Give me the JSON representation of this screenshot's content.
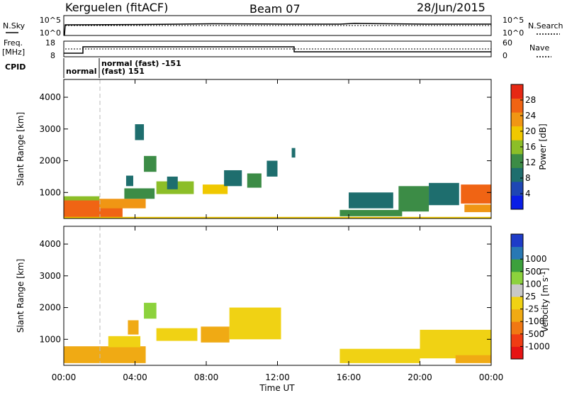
{
  "header": {
    "station": "Kerguelen (fitACF)",
    "beam": "Beam 07",
    "date": "28/Jun/2015"
  },
  "noise_panel": {
    "left_label": "N.Sky",
    "right_label": "N.Search",
    "left_ticks": [
      "10^5",
      "10^0"
    ],
    "right_ticks": [
      "10^5",
      "10^0"
    ]
  },
  "freq_panel": {
    "left_label_1": "Freq.",
    "left_label_2": "[MHz]",
    "right_label": "Nave",
    "left_ticks": [
      "18",
      "8"
    ],
    "right_ticks": [
      "60",
      "0"
    ]
  },
  "cpid_panel": {
    "label": "CPID",
    "mode_1": "normal",
    "mode_2a": "normal (fast) -151",
    "mode_2b": "(fast) 151"
  },
  "chart_data": [
    {
      "type": "heatmap",
      "name": "Power",
      "xlabel": "Time UT",
      "ylabel": "Slant Range [km]",
      "xlim": [
        0,
        24
      ],
      "x_tick_labels": [
        "00:00",
        "04:00",
        "08:00",
        "12:00",
        "16:00",
        "20:00",
        "00:00"
      ],
      "ylim": [
        180,
        4560
      ],
      "y_ticks": [
        1000,
        2000,
        3000,
        4000
      ],
      "colorbar": {
        "label": "Power [dB]",
        "ticks": [
          4,
          8,
          12,
          16,
          20,
          24,
          28
        ],
        "range": [
          0,
          32
        ],
        "colors": [
          "#0a1ee6",
          "#1e46b4",
          "#1e6e6e",
          "#3c8c46",
          "#8cbe28",
          "#f0c800",
          "#f09614",
          "#f06414",
          "#e62814"
        ]
      },
      "regions": [
        {
          "t0": 0.0,
          "t1": 3.3,
          "r0": 200,
          "r1": 780,
          "v": 27
        },
        {
          "t0": 0.0,
          "t1": 2.0,
          "r0": 750,
          "r1": 880,
          "v": 16
        },
        {
          "t0": 2.0,
          "t1": 4.6,
          "r0": 500,
          "r1": 800,
          "v": 23
        },
        {
          "t0": 3.4,
          "t1": 5.1,
          "r0": 800,
          "r1": 1130,
          "v": 12
        },
        {
          "t0": 3.5,
          "t1": 3.9,
          "r0": 1200,
          "r1": 1530,
          "v": 8
        },
        {
          "t0": 4.0,
          "t1": 4.5,
          "r0": 2650,
          "r1": 3150,
          "v": 8
        },
        {
          "t0": 4.5,
          "t1": 5.2,
          "r0": 1650,
          "r1": 2150,
          "v": 12
        },
        {
          "t0": 5.2,
          "t1": 7.3,
          "r0": 950,
          "r1": 1350,
          "v": 16
        },
        {
          "t0": 5.8,
          "t1": 6.4,
          "r0": 1100,
          "r1": 1500,
          "v": 8
        },
        {
          "t0": 7.8,
          "t1": 9.2,
          "r0": 950,
          "r1": 1250,
          "v": 20
        },
        {
          "t0": 9.0,
          "t1": 10.0,
          "r0": 1200,
          "r1": 1700,
          "v": 8
        },
        {
          "t0": 10.3,
          "t1": 11.1,
          "r0": 1150,
          "r1": 1600,
          "v": 12
        },
        {
          "t0": 11.4,
          "t1": 12.0,
          "r0": 1500,
          "r1": 2000,
          "v": 8
        },
        {
          "t0": 12.8,
          "t1": 13.0,
          "r0": 2100,
          "r1": 2400,
          "v": 8
        },
        {
          "t0": 15.5,
          "t1": 19.0,
          "r0": 250,
          "r1": 450,
          "v": 12
        },
        {
          "t0": 16.0,
          "t1": 18.5,
          "r0": 500,
          "r1": 1000,
          "v": 8
        },
        {
          "t0": 18.8,
          "t1": 20.5,
          "r0": 400,
          "r1": 1200,
          "v": 12
        },
        {
          "t0": 20.5,
          "t1": 22.2,
          "r0": 600,
          "r1": 1300,
          "v": 8
        },
        {
          "t0": 22.3,
          "t1": 24.0,
          "r0": 650,
          "r1": 1250,
          "v": 28
        },
        {
          "t0": 22.5,
          "t1": 24.0,
          "r0": 380,
          "r1": 620,
          "v": 24
        },
        {
          "t0": 0.0,
          "t1": 24.0,
          "r0": 190,
          "r1": 230,
          "v": 20
        }
      ]
    },
    {
      "type": "heatmap",
      "name": "Velocity",
      "xlabel": "Time UT",
      "ylabel": "Slant Range [km]",
      "xlim": [
        0,
        24
      ],
      "x_tick_labels": [
        "00:00",
        "04:00",
        "08:00",
        "12:00",
        "16:00",
        "20:00",
        "00:00"
      ],
      "ylim": [
        180,
        4560
      ],
      "y_ticks": [
        1000,
        2000,
        3000,
        4000
      ],
      "colorbar": {
        "label": "Velocity [m s-1]",
        "ticks": [
          "-1000",
          "-500",
          "-100",
          "-25",
          "25",
          "100",
          "500",
          "1000"
        ],
        "colors": [
          "#e61414",
          "#f03c14",
          "#f07814",
          "#f0aa14",
          "#f0d214",
          "#c8c8c8",
          "#8cd23c",
          "#3ca03c",
          "#2878b4",
          "#1e3cc8"
        ]
      },
      "regions": [
        {
          "t0": 0.0,
          "t1": 4.6,
          "r0": 250,
          "r1": 780,
          "v": -100
        },
        {
          "t0": 2.5,
          "t1": 4.3,
          "r0": 750,
          "r1": 1100,
          "v": -25
        },
        {
          "t0": 3.6,
          "t1": 4.2,
          "r0": 1150,
          "r1": 1600,
          "v": -100
        },
        {
          "t0": 4.5,
          "t1": 5.2,
          "r0": 1650,
          "r1": 2150,
          "v": 100
        },
        {
          "t0": 5.2,
          "t1": 7.5,
          "r0": 950,
          "r1": 1350,
          "v": 0
        },
        {
          "t0": 7.7,
          "t1": 9.3,
          "r0": 900,
          "r1": 1400,
          "v": -100
        },
        {
          "t0": 9.3,
          "t1": 12.2,
          "r0": 1000,
          "r1": 2000,
          "v": 0
        },
        {
          "t0": 15.5,
          "t1": 20.0,
          "r0": 250,
          "r1": 700,
          "v": 0
        },
        {
          "t0": 20.0,
          "t1": 24.0,
          "r0": 400,
          "r1": 1300,
          "v": 0
        },
        {
          "t0": 22.0,
          "t1": 24.0,
          "r0": 250,
          "r1": 500,
          "v": -100
        }
      ]
    }
  ]
}
